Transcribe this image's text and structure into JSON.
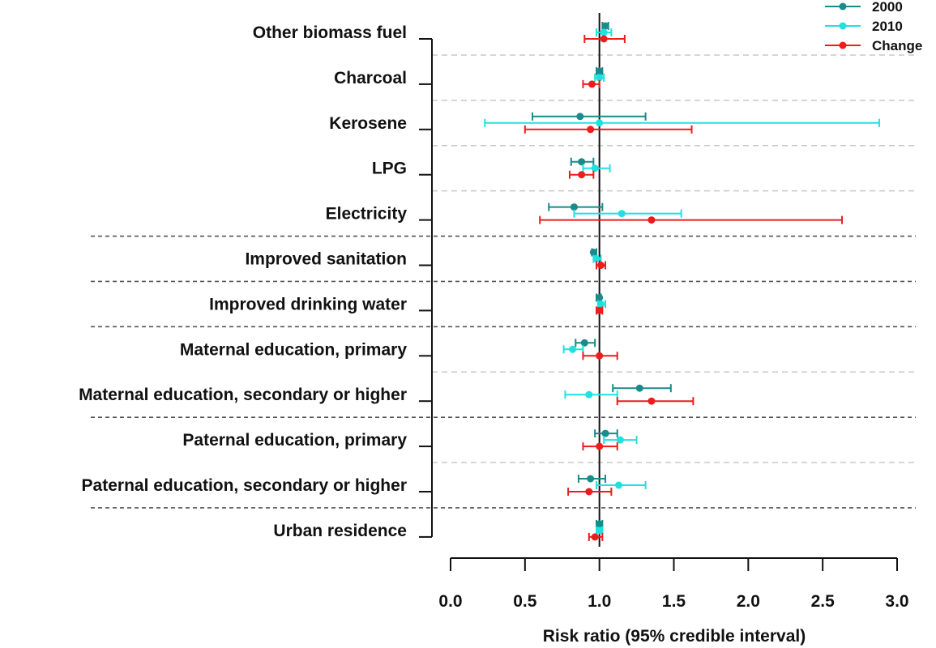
{
  "chart_data": {
    "type": "forest",
    "xlabel": "Risk ratio (95% credible interval)",
    "xlim": [
      0.0,
      3.0
    ],
    "xticks": [
      "0.0",
      "0.5",
      "1.0",
      "1.5",
      "2.0",
      "2.5",
      "3.0"
    ],
    "reference_line": 1.0,
    "legend_position": "top-right",
    "series": [
      {
        "name": "2000",
        "color": "#1a8a8a"
      },
      {
        "name": "2010",
        "color": "#22e0e0"
      },
      {
        "name": "Change",
        "color": "#ee1c1c"
      }
    ],
    "categories": [
      {
        "label": "Other biomass fuel",
        "2000": [
          1.04,
          1.02,
          1.06
        ],
        "2010": [
          1.03,
          0.98,
          1.08
        ],
        "Change": [
          1.03,
          0.9,
          1.17
        ]
      },
      {
        "label": "Charcoal",
        "2000": [
          1.0,
          0.98,
          1.02
        ],
        "2010": [
          1.0,
          0.97,
          1.03
        ],
        "Change": [
          0.95,
          0.89,
          1.0
        ]
      },
      {
        "label": "Kerosene",
        "2000": [
          0.87,
          0.55,
          1.31
        ],
        "2010": [
          1.0,
          0.23,
          2.88
        ],
        "Change": [
          0.94,
          0.5,
          1.62
        ]
      },
      {
        "label": "LPG",
        "2000": [
          0.88,
          0.81,
          0.96
        ],
        "2010": [
          0.97,
          0.89,
          1.07
        ],
        "Change": [
          0.88,
          0.8,
          0.96
        ]
      },
      {
        "label": "Electricity",
        "2000": [
          0.83,
          0.66,
          1.02
        ],
        "2010": [
          1.15,
          0.83,
          1.55
        ],
        "Change": [
          1.35,
          0.6,
          2.63
        ]
      },
      {
        "label": "Improved sanitation",
        "2000": [
          0.96,
          0.95,
          0.98
        ],
        "2010": [
          0.98,
          0.96,
          1.01
        ],
        "Change": [
          1.01,
          0.98,
          1.04
        ]
      },
      {
        "label": "Improved drinking water ",
        "2000": [
          1.0,
          0.98,
          1.01
        ],
        "2010": [
          1.01,
          0.99,
          1.04
        ],
        "Change": [
          1.0,
          0.98,
          1.02
        ]
      },
      {
        "label": "Maternal education, primary",
        "2000": [
          0.9,
          0.84,
          0.97
        ],
        "2010": [
          0.82,
          0.76,
          0.89
        ],
        "Change": [
          1.0,
          0.89,
          1.12
        ]
      },
      {
        "label": "Maternal education, secondary or higher",
        "2000": [
          1.27,
          1.09,
          1.48
        ],
        "2010": [
          0.93,
          0.77,
          1.12
        ],
        "Change": [
          1.35,
          1.12,
          1.63
        ]
      },
      {
        "label": "Paternal education, primary",
        "2000": [
          1.04,
          0.97,
          1.12
        ],
        "2010": [
          1.14,
          1.03,
          1.25
        ],
        "Change": [
          1.0,
          0.89,
          1.12
        ]
      },
      {
        "label": "Paternal education, secondary or higher",
        "2000": [
          0.94,
          0.86,
          1.04
        ],
        "2010": [
          1.13,
          0.98,
          1.31
        ],
        "Change": [
          0.93,
          0.79,
          1.08
        ]
      },
      {
        "label": "Urban residence",
        "2000": [
          1.0,
          0.98,
          1.02
        ],
        "2010": [
          1.0,
          0.98,
          1.02
        ],
        "Change": [
          0.97,
          0.93,
          1.02
        ]
      }
    ]
  }
}
